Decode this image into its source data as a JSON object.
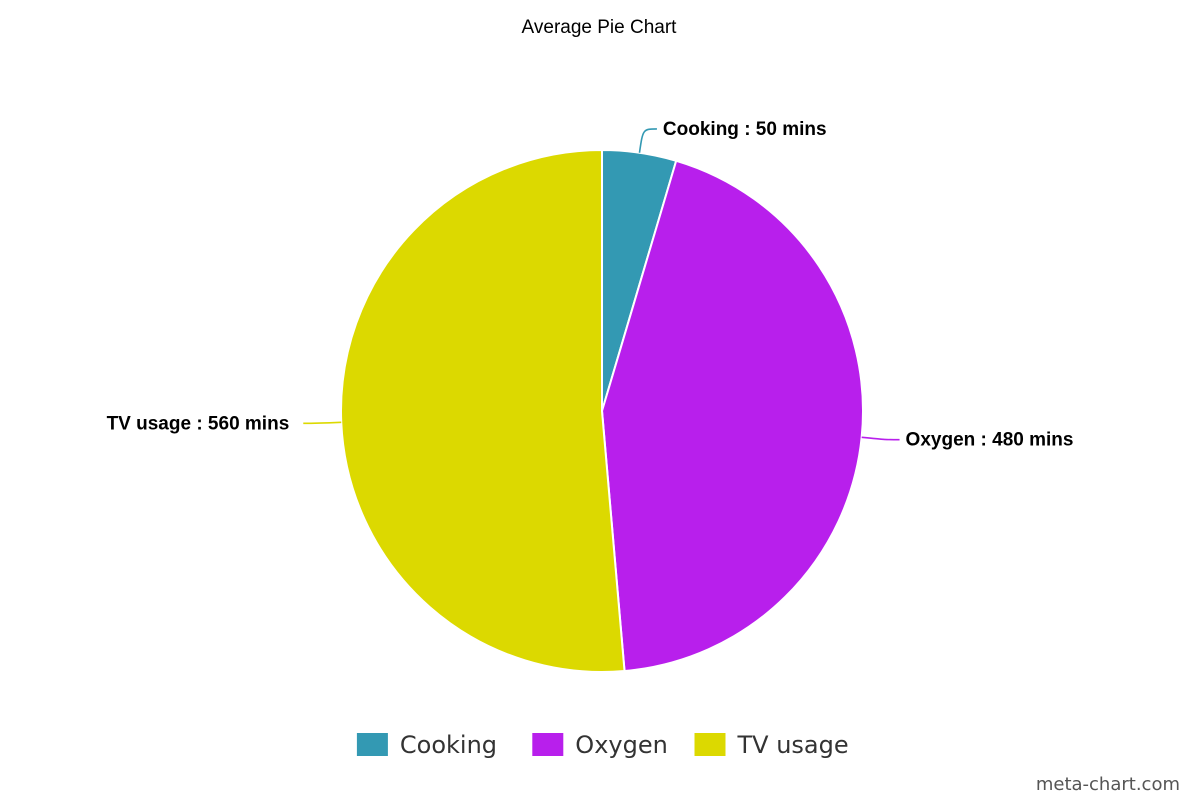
{
  "chart_data": {
    "type": "pie",
    "title": "Average Pie Chart",
    "unit": "mins",
    "label_separator": " : ",
    "start_angle_deg": 0,
    "direction": "clockwise",
    "legend_position": "bottom-center",
    "slices": [
      {
        "name": "Cooking",
        "value": 50,
        "color": "#3399b3"
      },
      {
        "name": "Oxygen",
        "value": 480,
        "color": "#b81fec"
      },
      {
        "name": "TV usage",
        "value": 560,
        "color": "#dcd900"
      }
    ]
  },
  "watermark": "meta-chart.com"
}
